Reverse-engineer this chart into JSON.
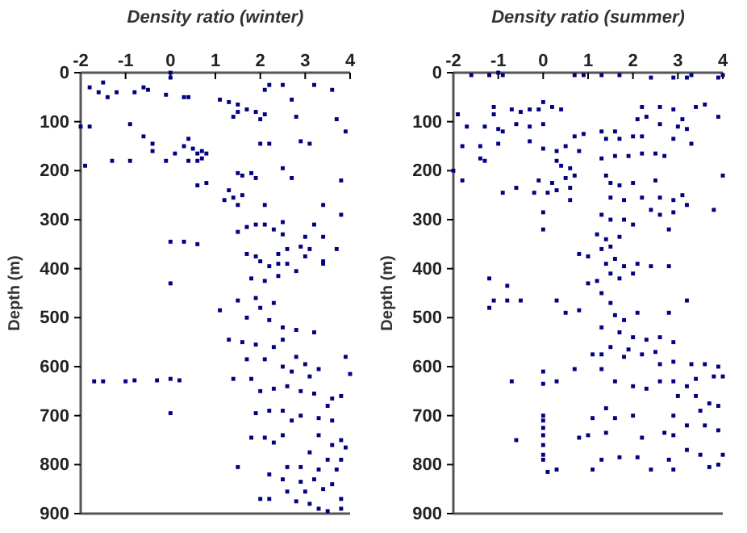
{
  "chart_data": [
    {
      "type": "scatter",
      "xlabel": "Density ratio (winter)",
      "ylabel": "Depth (m)",
      "xlim": [
        -2,
        4
      ],
      "xticks": [
        -2,
        -1,
        0,
        1,
        2,
        3,
        4
      ],
      "ylim": [
        900,
        0
      ],
      "yticks": [
        0,
        100,
        200,
        300,
        400,
        500,
        600,
        700,
        800,
        900
      ],
      "grid": false,
      "marker": "square",
      "series": [
        {
          "color": "#000080",
          "x": [
            -1.8,
            -1.5,
            -1.4,
            -1.6,
            -1.2,
            -0.8,
            -0.6,
            -0.5,
            -0.1,
            0,
            0,
            0.3,
            0.4,
            1.1,
            1.3,
            1.5,
            1.5,
            1.7,
            1.9,
            1.4,
            2.1,
            2.2,
            2.5,
            2.7,
            3.2,
            3.6,
            2,
            2.1,
            2.8,
            3.7,
            3.9,
            -2,
            -1.8,
            -0.9,
            2,
            2.2,
            2.9,
            3.1,
            -0.6,
            -0.4,
            -0.4,
            0.3,
            0.4,
            0.5,
            0.6,
            0.7,
            0.8,
            0.7,
            0.6,
            0.4,
            0.1,
            -0.1,
            -1.3,
            -0.9,
            -1.9,
            1.5,
            1.6,
            1.8,
            1.9,
            2.5,
            2.7,
            3.8,
            0.6,
            0.8,
            1.3,
            1.2,
            1.4,
            1.5,
            1.6,
            2.1,
            3.4,
            3.8,
            1.7,
            1.9,
            2.1,
            2.5,
            1.5,
            2.3,
            2.5,
            3,
            3.2,
            3.4,
            0,
            0.3,
            0.6,
            1.7,
            1.9,
            2.4,
            2.6,
            2.9,
            3.1,
            3.7,
            3.4,
            2,
            2.2,
            2.4,
            2.6,
            3,
            1.8,
            2.1,
            2.4,
            2.8,
            3.4,
            0,
            1.5,
            1.9,
            2,
            2.3,
            1.1,
            1.7,
            2.2,
            2.5,
            2.8,
            3.2,
            1.3,
            1.6,
            1.9,
            2.3,
            2.5,
            1.7,
            2.1,
            2.8,
            3,
            3.3,
            3.9,
            2.5,
            2.7,
            3.1,
            4,
            -1.7,
            -1.5,
            -1,
            -0.8,
            -0.3,
            0,
            0.2,
            1.4,
            1.8,
            2,
            2.3,
            2.6,
            2.9,
            3.2,
            3.6,
            3.8,
            3.5,
            0,
            1.9,
            2.2,
            2.5,
            2.9,
            3.3,
            3.6,
            2.7,
            1.8,
            2.1,
            2.5,
            3.3,
            3.8,
            3.9,
            3.6,
            2.3,
            3.1,
            3.5,
            3.8,
            1.5,
            2.6,
            2.9,
            3.3,
            3.7,
            2.2,
            2.5,
            2.9,
            3.2,
            3.6,
            2.6,
            3,
            3.4,
            3.8,
            2,
            2.2,
            2.8,
            3.1,
            3.3,
            3.5,
            3.8
          ],
          "values": [
            30,
            20,
            50,
            40,
            40,
            40,
            30,
            35,
            45,
            10,
            0,
            50,
            50,
            55,
            60,
            65,
            80,
            75,
            80,
            90,
            35,
            25,
            25,
            55,
            25,
            35,
            95,
            85,
            90,
            95,
            120,
            110,
            110,
            105,
            145,
            145,
            140,
            145,
            130,
            145,
            160,
            150,
            135,
            155,
            165,
            160,
            165,
            175,
            180,
            180,
            165,
            180,
            180,
            180,
            190,
            205,
            210,
            205,
            215,
            195,
            215,
            220,
            230,
            225,
            240,
            260,
            255,
            270,
            250,
            270,
            270,
            290,
            315,
            310,
            310,
            305,
            325,
            320,
            330,
            335,
            310,
            335,
            345,
            345,
            350,
            370,
            375,
            370,
            360,
            355,
            360,
            360,
            385,
            385,
            395,
            390,
            390,
            375,
            420,
            425,
            415,
            405,
            390,
            430,
            465,
            460,
            480,
            470,
            485,
            500,
            505,
            520,
            525,
            530,
            545,
            550,
            555,
            560,
            545,
            585,
            585,
            580,
            595,
            605,
            580,
            600,
            610,
            620,
            615,
            630,
            630,
            630,
            628,
            628,
            625,
            628,
            625,
            625,
            650,
            645,
            640,
            650,
            655,
            665,
            660,
            680,
            695,
            695,
            690,
            690,
            700,
            705,
            710,
            710,
            745,
            745,
            740,
            740,
            750,
            765,
            760,
            755,
            775,
            790,
            790,
            805,
            805,
            805,
            810,
            810,
            820,
            830,
            835,
            830,
            840,
            855,
            855,
            850,
            870,
            870,
            870,
            875,
            880,
            890,
            895,
            890
          ]
        }
      ]
    },
    {
      "type": "scatter",
      "xlabel": "Density ratio (summer)",
      "ylabel": "Depth (m)",
      "xlim": [
        -2,
        4
      ],
      "xticks": [
        -2,
        -1,
        0,
        1,
        2,
        3,
        4
      ],
      "ylim": [
        900,
        0
      ],
      "yticks": [
        0,
        100,
        200,
        300,
        400,
        500,
        600,
        700,
        800,
        900
      ],
      "grid": false,
      "marker": "square",
      "series": [
        {
          "color": "#000080",
          "x": [
            -1.6,
            -1.2,
            -1,
            -0.9,
            0.7,
            0.9,
            1.3,
            1.7,
            2.4,
            2.9,
            3.2,
            3.3,
            3.9,
            4,
            -1.9,
            -1.7,
            -1.1,
            -1.1,
            -0.7,
            -0.5,
            -0.3,
            -0.1,
            0,
            0.2,
            0.4,
            -1.3,
            -1,
            -0.6,
            -0.3,
            0,
            -1.8,
            -1.4,
            -1,
            -1.4,
            -1.3,
            -2,
            -1.8,
            -0.9,
            -0.3,
            0,
            0.3,
            0.5,
            0.7,
            0.9,
            0.8,
            0.3,
            0.4,
            0.6,
            0.7,
            0.5,
            0.2,
            -0.1,
            -0.2,
            0.1,
            0.3,
            0.6,
            -0.9,
            -0.6,
            0.6,
            1.3,
            1.6,
            1.4,
            1.7,
            2,
            2.2,
            1.3,
            1.6,
            1.9,
            2.2,
            2.5,
            2.7,
            2.1,
            2.3,
            2.2,
            2.6,
            2.9,
            3.4,
            3.6,
            3.9,
            3.1,
            2.6,
            3,
            3.2,
            2.9,
            3.3,
            4,
            1.4,
            1.5,
            1.7,
            2,
            2.5,
            1.5,
            1.8,
            2.2,
            2.6,
            2.9,
            3.1,
            3.2,
            3.8,
            2.4,
            2.6,
            2.9,
            1.3,
            1.5,
            1.8,
            2,
            2.8,
            0,
            0,
            1.2,
            1.4,
            1.7,
            1.3,
            1.5,
            1.6,
            0.8,
            1,
            1.8,
            2.1,
            2.4,
            2.8,
            1.4,
            1.5,
            1.7,
            2,
            1,
            1.2,
            -1.2,
            -0.8,
            -1.1,
            -1.2,
            -0.8,
            -0.5,
            0.3,
            0.5,
            0.8,
            1.3,
            1.5,
            1.6,
            1.8,
            2.1,
            2.8,
            3.2,
            1.3,
            1.7,
            2,
            2.3,
            2.6,
            2.9,
            1.5,
            1.9,
            2.2,
            2.5,
            1.1,
            1.3,
            1.8,
            2.6,
            2.9,
            3.3,
            3.6,
            3.9,
            0,
            0,
            -0.7,
            0.3,
            0.7,
            1.3,
            1.6,
            2,
            2.3,
            2.6,
            2.9,
            3.2,
            3.4,
            3.8,
            4,
            3,
            3.4,
            3.7,
            3.9,
            3.5,
            1.4,
            1.1,
            1.6,
            2,
            2.9,
            3.2,
            3.6,
            3.9,
            0,
            0,
            0,
            0,
            0,
            0,
            0.8,
            1,
            1.4,
            2.2,
            2.7,
            2.9,
            -0.6,
            0,
            0.1,
            0.3,
            1.1,
            1.3,
            1.7,
            2.1,
            2.4,
            2.8,
            2.9,
            3.2,
            3.5,
            3.7,
            4,
            3.9
          ],
          "values": [
            5,
            5,
            0,
            5,
            5,
            5,
            5,
            5,
            10,
            10,
            10,
            5,
            10,
            5,
            85,
            110,
            70,
            85,
            75,
            80,
            75,
            75,
            60,
            70,
            75,
            110,
            115,
            105,
            110,
            105,
            150,
            150,
            145,
            175,
            180,
            200,
            220,
            120,
            140,
            155,
            160,
            150,
            130,
            125,
            160,
            180,
            190,
            195,
            210,
            215,
            225,
            220,
            245,
            245,
            240,
            235,
            245,
            235,
            260,
            120,
            120,
            135,
            135,
            130,
            130,
            175,
            170,
            170,
            165,
            165,
            170,
            95,
            90,
            70,
            70,
            75,
            70,
            65,
            90,
            95,
            105,
            110,
            115,
            135,
            145,
            210,
            210,
            225,
            230,
            225,
            220,
            255,
            260,
            255,
            255,
            260,
            250,
            270,
            280,
            280,
            290,
            285,
            290,
            300,
            300,
            310,
            320,
            285,
            320,
            330,
            340,
            335,
            360,
            355,
            380,
            370,
            375,
            395,
            390,
            395,
            395,
            390,
            410,
            420,
            410,
            430,
            425,
            420,
            435,
            465,
            480,
            465,
            465,
            465,
            490,
            485,
            450,
            470,
            495,
            505,
            490,
            490,
            465,
            520,
            530,
            540,
            545,
            540,
            550,
            560,
            565,
            575,
            570,
            575,
            575,
            580,
            595,
            590,
            595,
            595,
            600,
            610,
            635,
            630,
            630,
            605,
            605,
            630,
            640,
            645,
            630,
            630,
            640,
            625,
            620,
            620,
            660,
            660,
            675,
            680,
            690,
            685,
            705,
            705,
            700,
            700,
            720,
            720,
            730,
            700,
            710,
            725,
            740,
            760,
            780,
            745,
            740,
            735,
            745,
            735,
            740,
            750,
            790,
            815,
            810,
            810,
            790,
            785,
            785,
            810,
            790,
            810,
            770,
            780,
            805,
            780,
            800
          ]
        }
      ]
    }
  ]
}
